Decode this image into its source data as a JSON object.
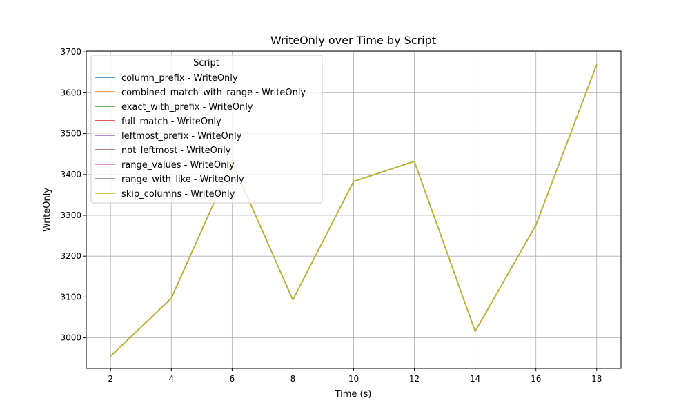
{
  "chart_data": {
    "type": "line",
    "title": "WriteOnly over Time by Script",
    "xlabel": "Time (s)",
    "ylabel": "WriteOnly",
    "xlim": [
      1.2,
      18.8
    ],
    "ylim": [
      2925,
      3702
    ],
    "xticks": [
      2,
      4,
      6,
      8,
      10,
      12,
      14,
      16,
      18
    ],
    "yticks": [
      3000,
      3100,
      3200,
      3300,
      3400,
      3500,
      3600,
      3700
    ],
    "grid": true,
    "legend": {
      "title": "Script",
      "placement": "top-left"
    },
    "x": [
      2,
      4,
      6,
      8,
      10,
      12,
      14,
      16,
      18
    ],
    "series": [
      {
        "name": "column_prefix - WriteOnly",
        "color": "#1f77b4",
        "values": [
          2955,
          3097,
          3430,
          3093,
          3383,
          3432,
          3016,
          3276,
          3669
        ]
      },
      {
        "name": "combined_match_with_range - WriteOnly",
        "color": "#ff7f0e",
        "values": [
          2955,
          3097,
          3430,
          3093,
          3383,
          3432,
          3016,
          3276,
          3669
        ]
      },
      {
        "name": "exact_with_prefix - WriteOnly",
        "color": "#2ca02c",
        "values": [
          2955,
          3097,
          3430,
          3093,
          3383,
          3432,
          3016,
          3276,
          3669
        ]
      },
      {
        "name": "full_match - WriteOnly",
        "color": "#d62728",
        "values": [
          2955,
          3097,
          3430,
          3093,
          3383,
          3432,
          3016,
          3276,
          3669
        ]
      },
      {
        "name": "leftmost_prefix - WriteOnly",
        "color": "#9467bd",
        "values": [
          2955,
          3097,
          3430,
          3093,
          3383,
          3432,
          3016,
          3276,
          3669
        ]
      },
      {
        "name": "not_leftmost - WriteOnly",
        "color": "#8c564b",
        "values": [
          2955,
          3097,
          3430,
          3093,
          3383,
          3432,
          3016,
          3276,
          3669
        ]
      },
      {
        "name": "range_values - WriteOnly",
        "color": "#e377c2",
        "values": [
          2955,
          3097,
          3430,
          3093,
          3383,
          3432,
          3016,
          3276,
          3669
        ]
      },
      {
        "name": "range_with_like - WriteOnly",
        "color": "#7f7f7f",
        "values": [
          2955,
          3097,
          3430,
          3093,
          3383,
          3432,
          3016,
          3276,
          3669
        ]
      },
      {
        "name": "skip_columns - WriteOnly",
        "color": "#bcbd22",
        "values": [
          2955,
          3097,
          3430,
          3093,
          3383,
          3432,
          3016,
          3276,
          3669
        ]
      }
    ]
  }
}
